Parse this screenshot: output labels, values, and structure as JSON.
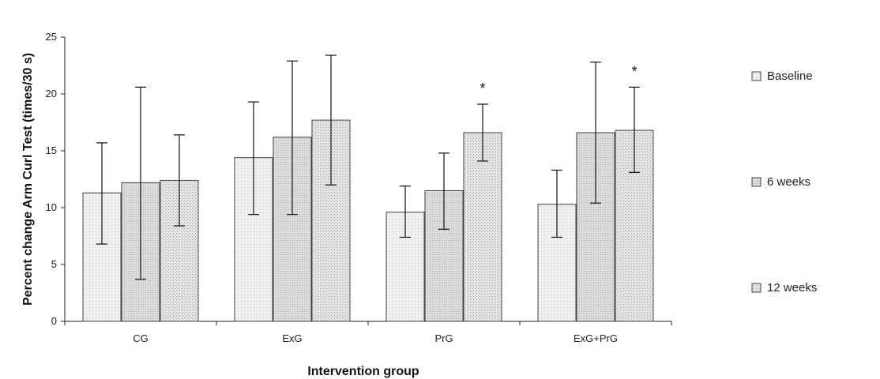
{
  "chart_data": {
    "type": "bar",
    "title": "",
    "xlabel": "Intervention group",
    "ylabel": "Percent change Arm Curl Test (times/30 s)",
    "ylim": [
      0,
      25
    ],
    "yticks": [
      0,
      5,
      10,
      15,
      20,
      25
    ],
    "categories": [
      "CG",
      "ExG",
      "PrG",
      "ExG+PrG"
    ],
    "series": [
      {
        "name": "Baseline",
        "values": [
          11.3,
          14.4,
          9.6,
          10.3
        ],
        "err_low": [
          6.8,
          9.4,
          7.4,
          7.4
        ],
        "err_high": [
          15.7,
          19.3,
          11.9,
          13.3
        ],
        "fill": "#f0f0f0",
        "dot": "#bdbdbd",
        "markers": [
          "",
          "",
          "",
          ""
        ]
      },
      {
        "name": "6 weeks",
        "values": [
          12.2,
          16.2,
          11.5,
          16.6
        ],
        "err_low": [
          3.7,
          9.4,
          8.1,
          10.4
        ],
        "err_high": [
          20.6,
          22.9,
          14.8,
          22.8
        ],
        "fill": "#dcdcdc",
        "dot": "#a8a8a8",
        "markers": [
          "",
          "",
          "",
          ""
        ]
      },
      {
        "name": "12 weeks",
        "values": [
          12.4,
          17.7,
          16.6,
          16.8
        ],
        "err_low": [
          8.4,
          12.0,
          14.1,
          13.1
        ],
        "err_high": [
          16.4,
          23.4,
          19.1,
          20.6
        ],
        "fill": "#e6e6e6",
        "dot": "#9a9a9a",
        "markers": [
          "",
          "",
          "*",
          "*"
        ]
      }
    ],
    "grid": false,
    "legend_position": "right"
  }
}
